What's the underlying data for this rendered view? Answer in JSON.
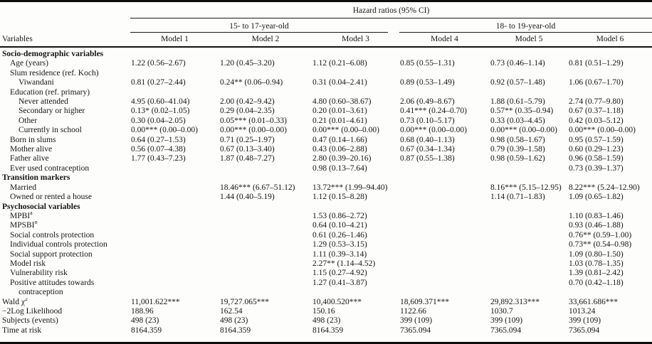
{
  "header": {
    "spanning_title": "Hazard ratios (95% CI)",
    "group1": "15- to 17-year-old",
    "group2": "18- to 19-year-old",
    "variables_label": "Variables",
    "models": [
      "Model 1",
      "Model 2",
      "Model 3",
      "Model 4",
      "Model 5",
      "Model 6"
    ]
  },
  "table": {
    "rows": [
      {
        "label": "Socio-demographic variables",
        "indent": 0,
        "bold": true,
        "cells": [
          "",
          "",
          "",
          "",
          "",
          ""
        ]
      },
      {
        "label": "Age (years)",
        "indent": 1,
        "cells": [
          "1.22 (0.56–2.67)",
          "1.20 (0.45–3.20)",
          "1.12 (0.21–6.08)",
          "0.85 (0.55–1.31)",
          "0.73 (0.46–1.14)",
          "0.81 (0.51–1.29)"
        ]
      },
      {
        "label": "Slum residence (ref. Koch)",
        "indent": 1,
        "cells": [
          "",
          "",
          "",
          "",
          "",
          ""
        ]
      },
      {
        "label": "Viwandani",
        "indent": 2,
        "cells": [
          "0.81 (0.27–2.44)",
          "0.24** (0.06–0.94)",
          "0.31 (0.04–2.41)",
          "0.89 (0.53–1.49)",
          "0.92 (0.57–1.48)",
          "1.06 (0.67–1.70)"
        ]
      },
      {
        "label": "Education (ref. primary)",
        "indent": 1,
        "cells": [
          "",
          "",
          "",
          "",
          "",
          ""
        ]
      },
      {
        "label": "Never attended",
        "indent": 2,
        "cells": [
          "4.95 (0.60–41.04)",
          "2.00 (0.42–9.42)",
          "4.80 (0.60–38.67)",
          "2.06 (0.49–8.67)",
          "1.88 (0.61–5.79)",
          "2.74 (0.77–9.80)"
        ]
      },
      {
        "label": "Secondary or higher",
        "indent": 2,
        "cells": [
          "0.13* (0.02–1.05)",
          "0.29 (0.04–2.35)",
          "0.20 (0.01–3.61)",
          "0.41*** (0.24–0.70)",
          "0.57** (0.35–0.94)",
          "0.67 (0.37–1.18)"
        ]
      },
      {
        "label": "Other",
        "indent": 2,
        "cells": [
          "0.30 (0.04–2.05)",
          "0.05*** (0.01–0.33)",
          "0.21 (0.01–4.61)",
          "0.73 (0.10–5.17)",
          "0.33 (0.03–4.45)",
          "0.42 (0.03–5.12)"
        ]
      },
      {
        "label": "Currently in school",
        "indent": 2,
        "cells": [
          "0.00*** (0.00–0.00)",
          "0.00*** (0.00–0.00)",
          "0.00*** (0.00–0.00)",
          "0.00*** (0.00–0.00)",
          "0.00*** (0.00–0.00)",
          "0.00*** (0.00–0.00)"
        ]
      },
      {
        "label": "Born in slums",
        "indent": 1,
        "cells": [
          "0.64 (0.27–1.53)",
          "0.71 (0.25–1.97)",
          "0.47 (0.14–1.66)",
          "0.68 (0.40–1.13)",
          "0.98 (0.58–1.67)",
          "0.95 (0.57–1.59)"
        ]
      },
      {
        "label": "Mother alive",
        "indent": 1,
        "cells": [
          "0.56 (0.07–4.38)",
          "0.67 (0.13–3.40)",
          "0.43 (0.06–2.88)",
          "0.67 (0.34–1.34)",
          "0.79 (0.39–1.58)",
          "0.60 (0.29–1.23)"
        ]
      },
      {
        "label": "Father alive",
        "indent": 1,
        "cells": [
          "1.77 (0.43–7.23)",
          "1.87 (0.48–7.27)",
          "2.80 (0.39–20.16)",
          "0.87 (0.55–1.38)",
          "0.98 (0.59–1.62)",
          "0.96 (0.58–1.59)"
        ]
      },
      {
        "label": "Ever used contraception",
        "indent": 1,
        "cells": [
          "",
          "",
          "0.98 (0.13–7.64)",
          "",
          "",
          "0.73 (0.39–1.37)"
        ]
      },
      {
        "label": "Transition markers",
        "indent": 0,
        "bold": true,
        "cells": [
          "",
          "",
          "",
          "",
          "",
          ""
        ]
      },
      {
        "label": "Married",
        "indent": 1,
        "cells": [
          "",
          "18.46*** (6.67–51.12)",
          "13.72*** (1.99–94.40)",
          "",
          "8.16*** (5.15–12.95)",
          "8.22*** (5.24–12.90)"
        ]
      },
      {
        "label": "Owned or rented a house",
        "indent": 1,
        "cells": [
          "",
          "1.44 (0.40–5.19)",
          "1.12 (0.15–8.28)",
          "",
          "1.14 (0.71–1.83)",
          "1.09 (0.65–1.82)"
        ]
      },
      {
        "label": "Psychosocial variables",
        "indent": 0,
        "bold": true,
        "cells": [
          "",
          "",
          "",
          "",
          "",
          ""
        ]
      },
      {
        "label": "MPBI",
        "sup": "a",
        "indent": 1,
        "cells": [
          "",
          "",
          "1.53 (0.86–2.72)",
          "",
          "",
          "1.10 (0.83–1.46)"
        ]
      },
      {
        "label": "MPSBI",
        "sup": "b",
        "indent": 1,
        "cells": [
          "",
          "",
          "0.64 (0.10–4.21)",
          "",
          "",
          "0.93 (0.46–1.88)"
        ]
      },
      {
        "label": "Social controls protection",
        "indent": 1,
        "cells": [
          "",
          "",
          "0.61 (0.26–1.46)",
          "",
          "",
          "0.76** (0.59–1.00)"
        ]
      },
      {
        "label": "Individual controls protection",
        "indent": 1,
        "cells": [
          "",
          "",
          "1.29 (0.53–3.15)",
          "",
          "",
          "0.73** (0.54–0.98)"
        ]
      },
      {
        "label": "Social support protection",
        "indent": 1,
        "cells": [
          "",
          "",
          "1.11 (0.39–3.14)",
          "",
          "",
          "1.09 (0.80–1.50)"
        ]
      },
      {
        "label": "Model risk",
        "indent": 1,
        "cells": [
          "",
          "",
          "2.27** (1.14–4.52)",
          "",
          "",
          "1.03 (0.78–1.35)"
        ]
      },
      {
        "label": "Vulnerability risk",
        "indent": 1,
        "cells": [
          "",
          "",
          "1.15 (0.27–4.92)",
          "",
          "",
          "1.39 (0.81–2.42)"
        ]
      },
      {
        "label": "Positive attitudes towards",
        "label2": "contraception",
        "indent": 1,
        "cells": [
          "",
          "",
          "1.27 (0.41–3.87)",
          "",
          "",
          "0.70 (0.42–1.18)"
        ]
      },
      {
        "label": "Wald χ",
        "sup": "2",
        "indent": 0,
        "cells": [
          "11,001.622***",
          "19,727.065***",
          "10,400.520***",
          "18,609.371***",
          "29,892.313***",
          "33,661.686***"
        ]
      },
      {
        "label": "−2Log Likelihood",
        "indent": 0,
        "cells": [
          "188.96",
          "162.54",
          "150.16",
          "1122.66",
          "1030.7",
          "1013.24"
        ]
      },
      {
        "label": "Subjects (events)",
        "indent": 0,
        "cells": [
          "498 (23)",
          "498 (23)",
          "498 (23)",
          "399 (109)",
          "399 (109)",
          "399 (109)"
        ]
      },
      {
        "label": "Time at risk",
        "indent": 0,
        "cells": [
          "8164.359",
          "8164.359",
          "8164.359",
          "7365.094",
          "7365.094",
          "7365.094"
        ]
      }
    ]
  }
}
